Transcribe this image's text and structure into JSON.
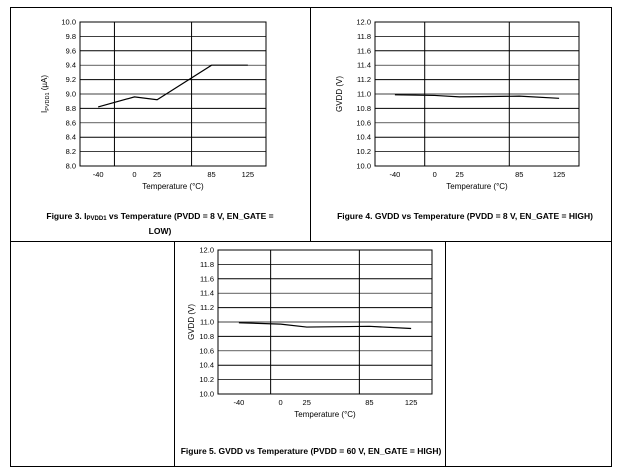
{
  "figures": [
    {
      "caption_prefix": "Figure 3. I",
      "caption_sub": "PVDD1",
      "caption_rest": " vs Temperature (PVDD = 8 V, EN_GATE = LOW)"
    },
    {
      "caption_prefix": "Figure 4. GVDD vs Temperature (PVDD = 8 V, EN_GATE = HIGH)",
      "caption_sub": "",
      "caption_rest": ""
    },
    {
      "caption_prefix": "Figure 5. GVDD vs Temperature (PVDD = 60 V, EN_GATE = HIGH)",
      "caption_sub": "",
      "caption_rest": ""
    }
  ],
  "chart_data": [
    {
      "type": "line",
      "xlabel": "Temperature (°C)",
      "ylabel": "I",
      "ylabel_sub": "PVDD1",
      "ylabel_unit": " (µA)",
      "x_ticks": [
        -40,
        0,
        25,
        85,
        125
      ],
      "x_tick_labels": [
        "-40",
        "0",
        "25",
        "85",
        "125"
      ],
      "x_range": [
        -60,
        145
      ],
      "y_ticks": [
        "8.0",
        "8.2",
        "8.4",
        "8.6",
        "8.8",
        "9.0",
        "9.2",
        "9.4",
        "9.6",
        "9.8",
        "10.0"
      ],
      "ylim": [
        8.0,
        10.0
      ],
      "grid": true,
      "series": [
        {
          "x": [
            -40,
            0,
            25,
            85,
            125
          ],
          "y": [
            8.82,
            8.96,
            8.92,
            9.4,
            9.4
          ]
        }
      ]
    },
    {
      "type": "line",
      "xlabel": "Temperature (°C)",
      "ylabel": "GVDD (V)",
      "ylabel_sub": "",
      "ylabel_unit": "",
      "x_ticks": [
        -40,
        0,
        25,
        85,
        125
      ],
      "x_tick_labels": [
        "-40",
        "0",
        "25",
        "85",
        "125"
      ],
      "x_range": [
        -60,
        145
      ],
      "y_ticks": [
        "10.0",
        "10.2",
        "10.4",
        "10.6",
        "10.8",
        "11.0",
        "11.2",
        "11.4",
        "11.6",
        "11.8",
        "12.0"
      ],
      "ylim": [
        10.0,
        12.0
      ],
      "grid": true,
      "series": [
        {
          "x": [
            -40,
            0,
            25,
            85,
            125
          ],
          "y": [
            10.99,
            10.98,
            10.96,
            10.97,
            10.94
          ]
        }
      ]
    },
    {
      "type": "line",
      "xlabel": "Temperature (°C)",
      "ylabel": "GVDD (V)",
      "ylabel_sub": "",
      "ylabel_unit": "",
      "x_ticks": [
        -40,
        0,
        25,
        85,
        125
      ],
      "x_tick_labels": [
        "-40",
        "0",
        "25",
        "85",
        "125"
      ],
      "x_range": [
        -60,
        145
      ],
      "y_ticks": [
        "10.0",
        "10.2",
        "10.4",
        "10.6",
        "10.8",
        "11.0",
        "11.2",
        "11.4",
        "11.6",
        "11.8",
        "12.0"
      ],
      "ylim": [
        10.0,
        12.0
      ],
      "grid": true,
      "series": [
        {
          "x": [
            -40,
            0,
            25,
            85,
            125
          ],
          "y": [
            10.99,
            10.97,
            10.93,
            10.94,
            10.91
          ]
        }
      ]
    }
  ]
}
